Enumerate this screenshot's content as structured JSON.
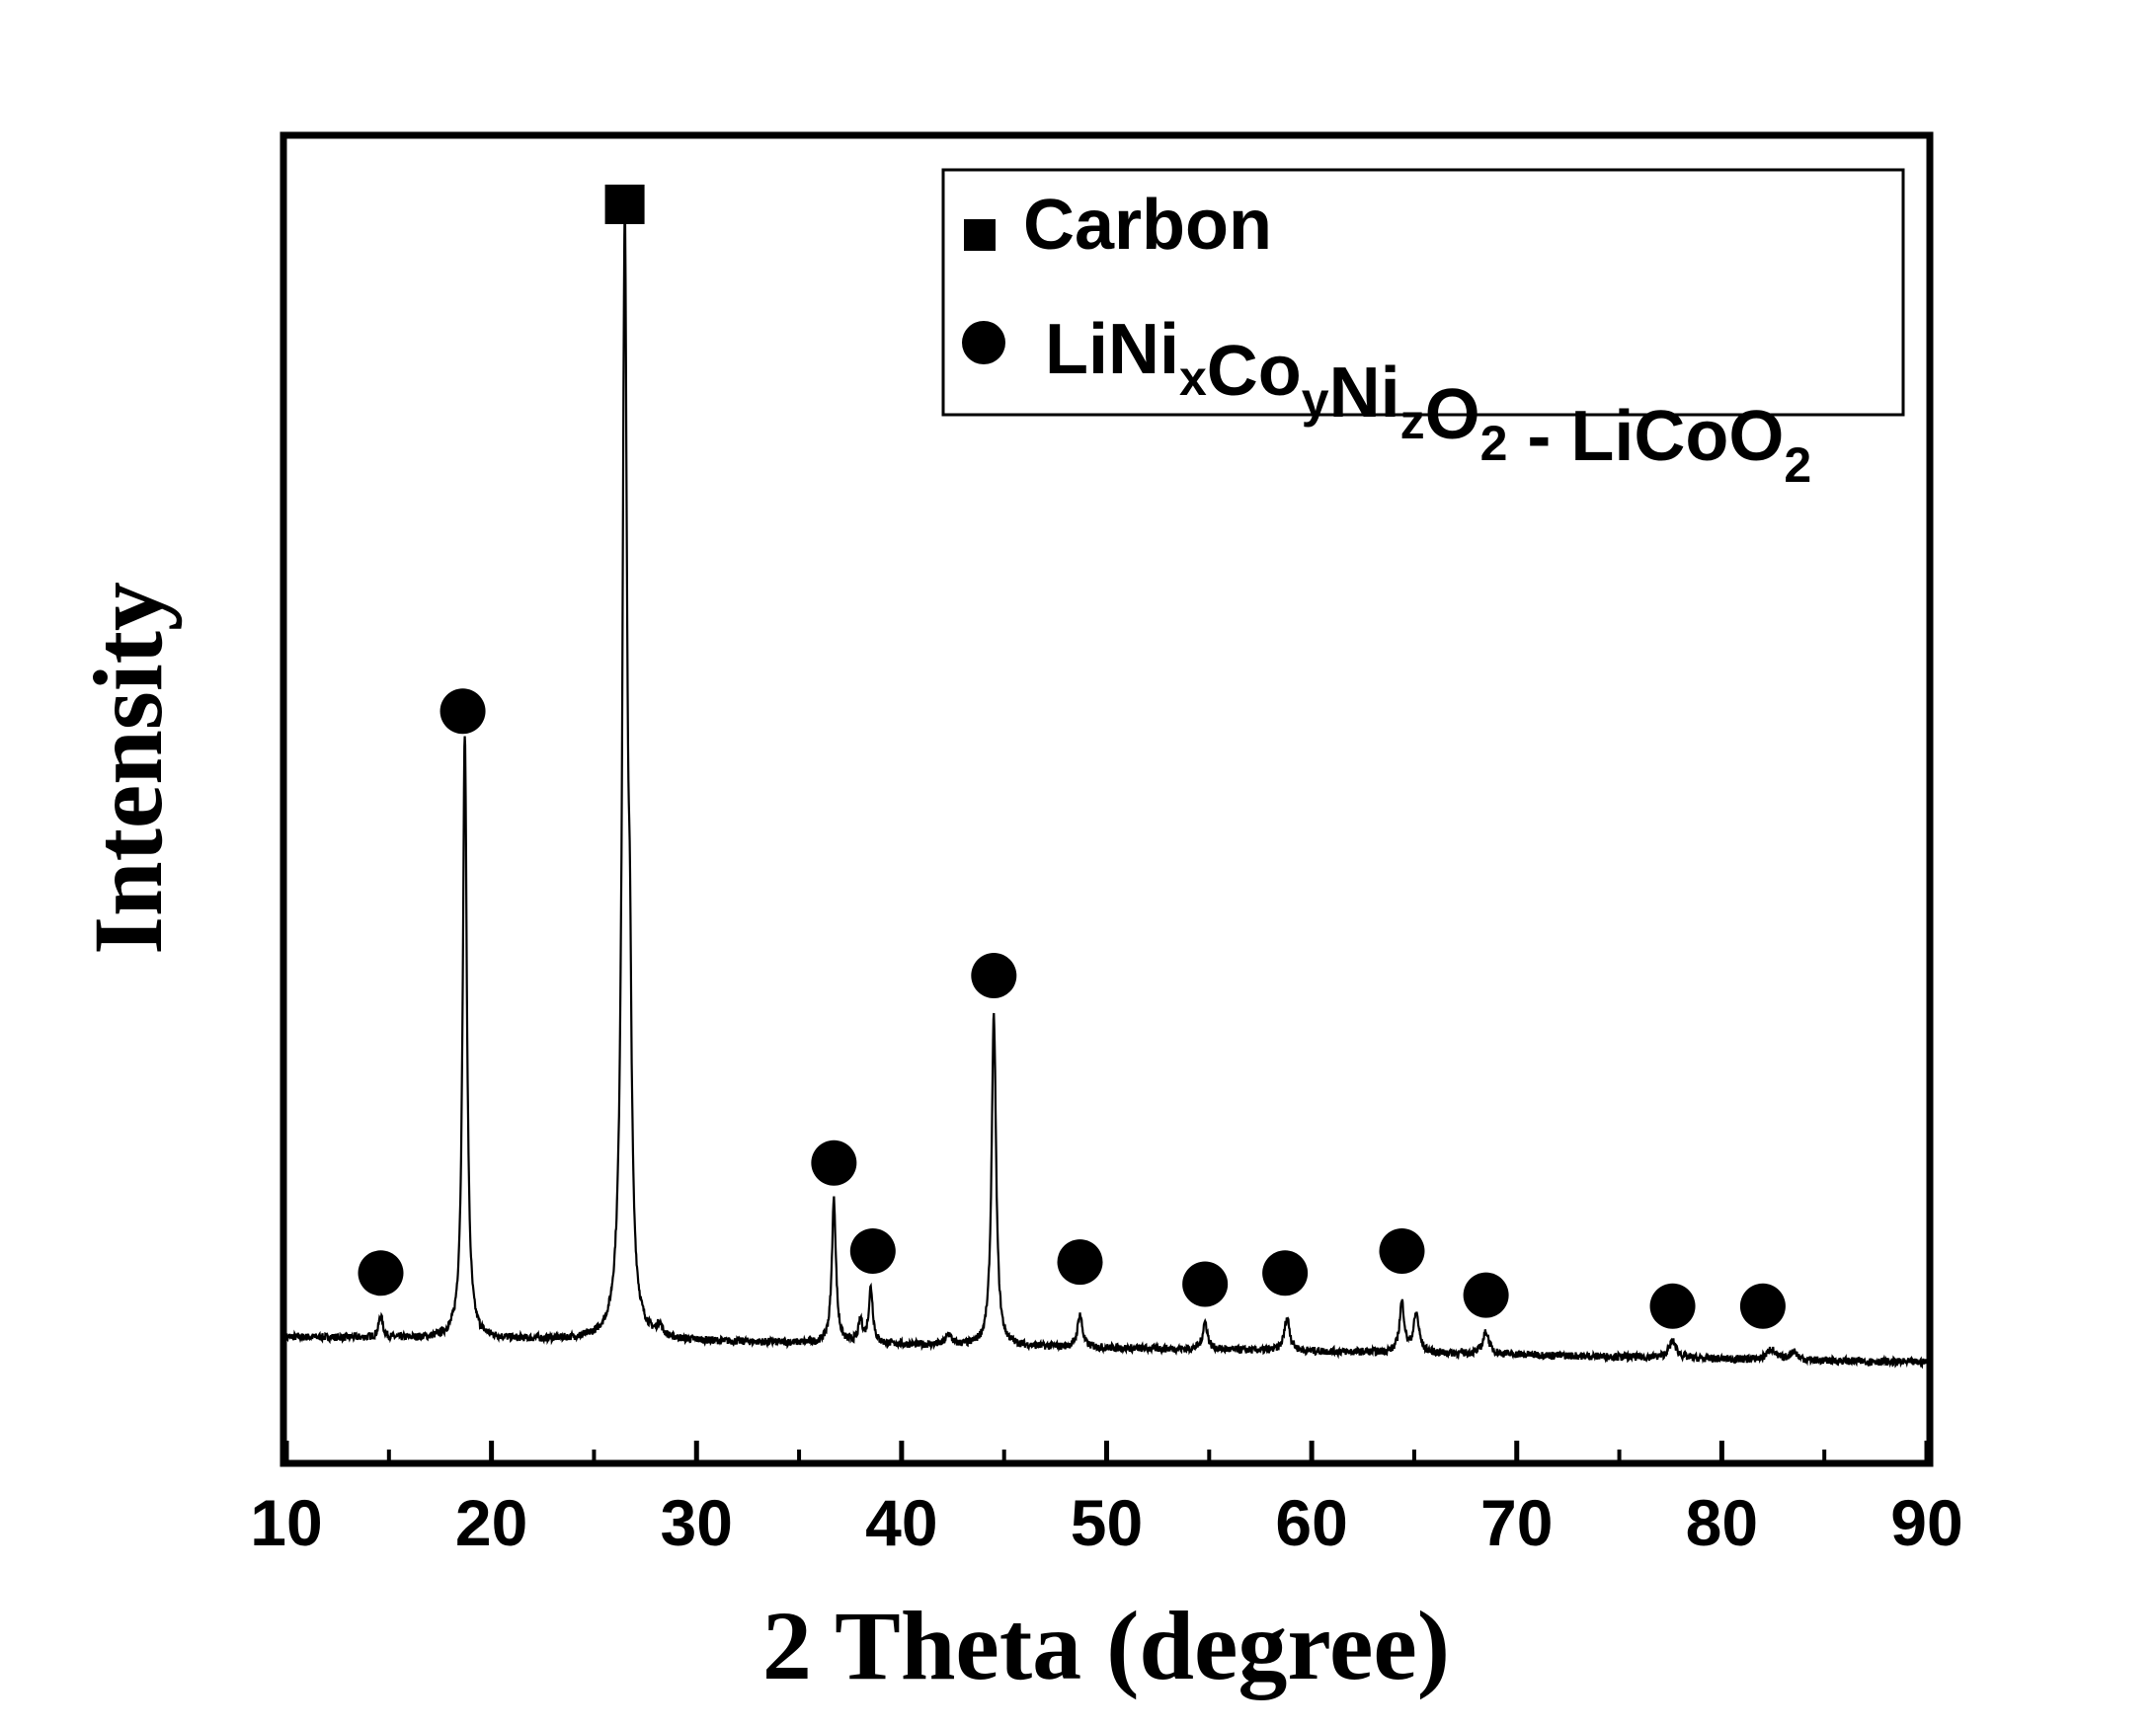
{
  "chart_data": {
    "type": "line",
    "xlabel": "2 Theta (degree)",
    "ylabel": "Intensity",
    "xlim": [
      10,
      90
    ],
    "ylim": [
      -0.1,
      1.1
    ],
    "x_ticks": [
      "10",
      "20",
      "30",
      "40",
      "50",
      "60",
      "70",
      "80",
      "90"
    ],
    "grid": false,
    "y_tick_labels": false,
    "legend": {
      "placement": "top-right",
      "entries": [
        {
          "marker": "square",
          "label": "Carbon"
        },
        {
          "marker": "circle",
          "label_parts": [
            {
              "t": "LiNi"
            },
            {
              "t": "x",
              "sub": true
            },
            {
              "t": "Co"
            },
            {
              "t": "y",
              "sub": true
            },
            {
              "t": "Ni"
            },
            {
              "t": "z",
              "sub": true
            },
            {
              "t": "O"
            },
            {
              "t": "2",
              "sub": true
            },
            {
              "t": " - LiCoO"
            },
            {
              "t": "2",
              "sub": true
            }
          ]
        }
      ]
    },
    "series": [
      {
        "baseline": [
          [
            10,
            0.012
          ],
          [
            20,
            0.01
          ],
          [
            30,
            0.008
          ],
          [
            40,
            0.005
          ],
          [
            50,
            0.002
          ],
          [
            60,
            -0.001
          ],
          [
            70,
            -0.004
          ],
          [
            80,
            -0.008
          ],
          [
            90,
            -0.011
          ]
        ],
        "peaks": [
          {
            "x": 14.6,
            "height": 0.02,
            "width": 0.12
          },
          {
            "x": 18.7,
            "height": 0.55,
            "width": 0.12
          },
          {
            "x": 26.5,
            "height": 1.0,
            "width": 0.14
          },
          {
            "x": 26.75,
            "height": 0.2,
            "width": 0.1
          },
          {
            "x": 28.2,
            "height": 0.01,
            "width": 0.15
          },
          {
            "x": 36.7,
            "height": 0.13,
            "width": 0.12
          },
          {
            "x": 38.0,
            "height": 0.02,
            "width": 0.12
          },
          {
            "x": 38.5,
            "height": 0.05,
            "width": 0.12
          },
          {
            "x": 42.3,
            "height": 0.01,
            "width": 0.15
          },
          {
            "x": 44.5,
            "height": 0.3,
            "width": 0.13
          },
          {
            "x": 48.7,
            "height": 0.03,
            "width": 0.14
          },
          {
            "x": 54.8,
            "height": 0.025,
            "width": 0.14
          },
          {
            "x": 58.8,
            "height": 0.03,
            "width": 0.16
          },
          {
            "x": 64.4,
            "height": 0.045,
            "width": 0.14
          },
          {
            "x": 65.1,
            "height": 0.035,
            "width": 0.16
          },
          {
            "x": 68.5,
            "height": 0.02,
            "width": 0.18
          },
          {
            "x": 77.6,
            "height": 0.015,
            "width": 0.22
          },
          {
            "x": 82.4,
            "height": 0.01,
            "width": 0.22
          },
          {
            "x": 83.5,
            "height": 0.008,
            "width": 0.22
          }
        ]
      }
    ],
    "markers": [
      {
        "type": "square",
        "x": 26.5,
        "y": 1.04,
        "label": "Carbon"
      },
      {
        "type": "circle",
        "x": 14.6,
        "y": 0.07,
        "label": "LiNixCoyNizO2 - LiCoO2"
      },
      {
        "type": "circle",
        "x": 18.6,
        "y": 0.58,
        "label": "LiNixCoyNizO2 - LiCoO2"
      },
      {
        "type": "circle",
        "x": 36.7,
        "y": 0.17,
        "label": "LiNixCoyNizO2 - LiCoO2"
      },
      {
        "type": "circle",
        "x": 38.6,
        "y": 0.09,
        "label": "LiNixCoyNizO2 - LiCoO2"
      },
      {
        "type": "circle",
        "x": 44.5,
        "y": 0.34,
        "label": "LiNixCoyNizO2 - LiCoO2"
      },
      {
        "type": "circle",
        "x": 48.7,
        "y": 0.08,
        "label": "LiNixCoyNizO2 - LiCoO2"
      },
      {
        "type": "circle",
        "x": 54.8,
        "y": 0.06,
        "label": "LiNixCoyNizO2 - LiCoO2"
      },
      {
        "type": "circle",
        "x": 58.7,
        "y": 0.07,
        "label": "LiNixCoyNizO2 - LiCoO2"
      },
      {
        "type": "circle",
        "x": 64.4,
        "y": 0.09,
        "label": "LiNixCoyNizO2 - LiCoO2"
      },
      {
        "type": "circle",
        "x": 68.5,
        "y": 0.05,
        "label": "LiNixCoyNizO2 - LiCoO2"
      },
      {
        "type": "circle",
        "x": 77.6,
        "y": 0.04,
        "label": "LiNixCoyNizO2 - LiCoO2"
      },
      {
        "type": "circle",
        "x": 82.0,
        "y": 0.04,
        "label": "LiNixCoyNizO2 - LiCoO2"
      }
    ]
  }
}
